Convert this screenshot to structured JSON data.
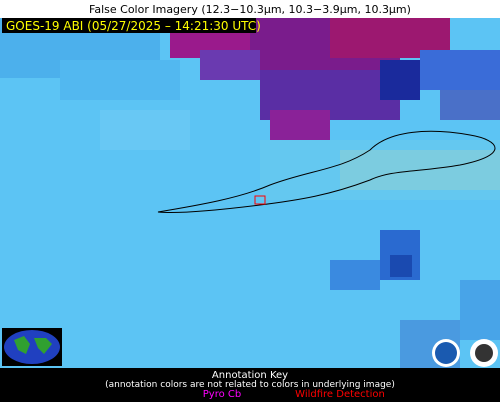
{
  "header": {
    "title": "False Color Imagery (12.3−10.3µm, 10.3−3.9µm, 10.3µm)"
  },
  "image": {
    "timestamp": "GOES-19 ABI (05/27/2025 – 14:21:30 UTC)"
  },
  "annotation_key": {
    "title": "Annotation Key",
    "note": "(annotation colors are not related to colors in underlying image)",
    "items": [
      {
        "label": "Pyro Cb",
        "color": "#ff00ff"
      },
      {
        "label": "Wildfire Detection",
        "color": "#ff0000"
      }
    ]
  }
}
